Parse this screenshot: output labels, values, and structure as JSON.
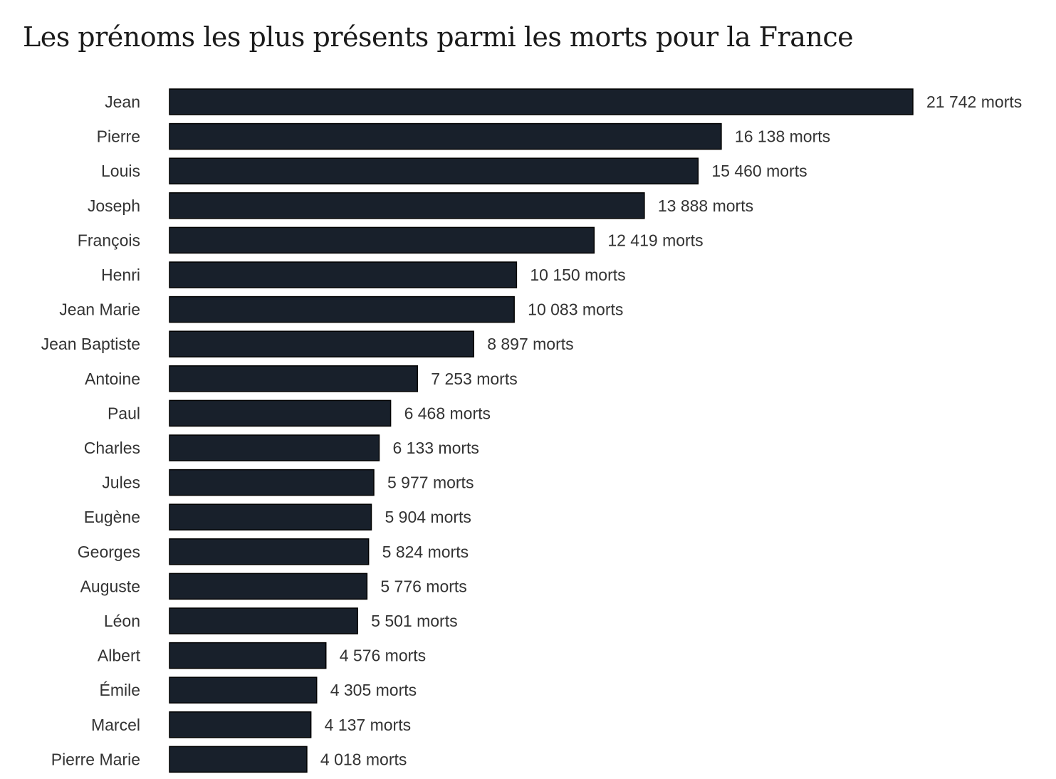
{
  "title": "Les prénoms les plus présents parmi les morts pour la France",
  "chart_data": {
    "type": "bar",
    "orientation": "horizontal",
    "title": "Les prénoms les plus présents parmi les morts pour la France",
    "xlabel": "",
    "ylabel": "",
    "grid": false,
    "bar_color": "#18202b",
    "categories": [
      "Jean",
      "Pierre",
      "Louis",
      "Joseph",
      "François",
      "Henri",
      "Jean Marie",
      "Jean Baptiste",
      "Antoine",
      "Paul",
      "Charles",
      "Jules",
      "Eugène",
      "Georges",
      "Auguste",
      "Léon",
      "Albert",
      "Émile",
      "Marcel",
      "Pierre Marie"
    ],
    "values": [
      21742,
      16138,
      15460,
      13888,
      12419,
      10150,
      10083,
      8897,
      7253,
      6468,
      6133,
      5977,
      5904,
      5824,
      5776,
      5501,
      4576,
      4305,
      4137,
      4018
    ],
    "value_labels": [
      "21 742 morts",
      "16 138 morts",
      "15 460 morts",
      "13 888 morts",
      "12 419 morts",
      "10 150 morts",
      "10 083 morts",
      "8 897 morts",
      "7 253 morts",
      "6 468 morts",
      "6 133 morts",
      "5 977 morts",
      "5 904 morts",
      "5 824 morts",
      "5 776 morts",
      "5 501 morts",
      "4 576 morts",
      "4 305 morts",
      "4 137 morts",
      "4 018 morts"
    ]
  }
}
